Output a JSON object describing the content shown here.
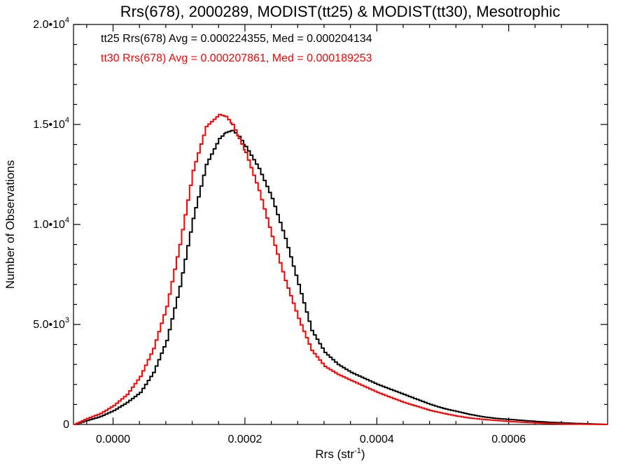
{
  "chart_data": {
    "type": "line",
    "title": "Rrs(678), 2000289, MODIST(tt25) & MODIST(tt30), Mesotrophic",
    "xlabel": "Rrs (str",
    "xlabel_sup": "-1",
    "xlabel_suffix": ")",
    "ylabel": "Number of Observations",
    "xlim": [
      -6e-05,
      0.00075
    ],
    "ylim": [
      0,
      20000
    ],
    "grid": false,
    "step": true,
    "x_ticks": [
      {
        "value": 0.0,
        "label": "0.0000"
      },
      {
        "value": 0.0002,
        "label": "0.0002"
      },
      {
        "value": 0.0004,
        "label": "0.0004"
      },
      {
        "value": 0.0006,
        "label": "0.0006"
      }
    ],
    "y_ticks": [
      {
        "value": 0,
        "label": "0",
        "sup": ""
      },
      {
        "value": 5000,
        "label": "5.0•1",
        "sup": "3"
      },
      {
        "value": 10000,
        "label": "1.0•1",
        "sup": "4"
      },
      {
        "value": 15000,
        "label": "1.5•1",
        "sup": "4"
      },
      {
        "value": 20000,
        "label": "2.0•1",
        "sup": "4"
      }
    ],
    "x_tick_labels_note": "labels print as 0.0000 etc.; y labels as mantissa•1 followed by 0 and superscript exponent",
    "legend": [
      {
        "text": "tt25 Rrs(678) Avg = 0.000224355, Med = 0.000204134",
        "color": "#000000"
      },
      {
        "text": "tt30 Rrs(678) Avg = 0.000207861, Med = 0.000189253",
        "color": "#ff0000"
      }
    ],
    "legend_position": "top-left",
    "series": [
      {
        "color": "#000000",
        "x": [
          -6e-05,
          -4e-05,
          -2e-05,
          0.0,
          2e-05,
          4e-05,
          6e-05,
          8e-05,
          0.0001,
          0.00012,
          0.00014,
          0.00016,
          0.00017,
          0.00018,
          0.00019,
          0.0002,
          0.00022,
          0.00024,
          0.00026,
          0.00028,
          0.0003,
          0.00032,
          0.00034,
          0.00036,
          0.00038,
          0.0004,
          0.00042,
          0.00044,
          0.00046,
          0.00048,
          0.0005,
          0.00052,
          0.00054,
          0.00056,
          0.00058,
          0.0006,
          0.00062,
          0.00064,
          0.00066,
          0.00068,
          0.0007,
          0.00072,
          0.00075
        ],
        "y": [
          0,
          200,
          400,
          700,
          1100,
          1600,
          2600,
          4200,
          6900,
          10300,
          13000,
          14300,
          14600,
          14700,
          14400,
          13900,
          12800,
          11300,
          9300,
          7000,
          4700,
          3600,
          3000,
          2600,
          2300,
          2000,
          1750,
          1500,
          1250,
          1000,
          800,
          650,
          500,
          380,
          300,
          250,
          200,
          150,
          110,
          80,
          50,
          30,
          0
        ]
      },
      {
        "color": "#ff0000",
        "x": [
          -6e-05,
          -4e-05,
          -2e-05,
          0.0,
          2e-05,
          4e-05,
          6e-05,
          8e-05,
          0.0001,
          0.00012,
          0.00014,
          0.00016,
          0.00017,
          0.00018,
          0.00019,
          0.0002,
          0.00022,
          0.00024,
          0.00026,
          0.00028,
          0.0003,
          0.00032,
          0.00034,
          0.00036,
          0.00038,
          0.0004,
          0.00042,
          0.00044,
          0.00046,
          0.00048,
          0.0005,
          0.00052,
          0.00054,
          0.00056,
          0.00058,
          0.0006,
          0.00062,
          0.00064,
          0.00066,
          0.00068,
          0.0007,
          0.00072,
          0.00075
        ],
        "y": [
          0,
          300,
          550,
          950,
          1500,
          2400,
          3800,
          5900,
          9000,
          12700,
          14900,
          15500,
          15400,
          15000,
          14300,
          13600,
          11700,
          9400,
          7200,
          5300,
          3700,
          2900,
          2500,
          2200,
          1900,
          1600,
          1350,
          1100,
          900,
          700,
          550,
          420,
          320,
          250,
          200,
          150,
          110,
          80,
          50,
          30,
          20,
          10,
          0
        ]
      }
    ]
  }
}
